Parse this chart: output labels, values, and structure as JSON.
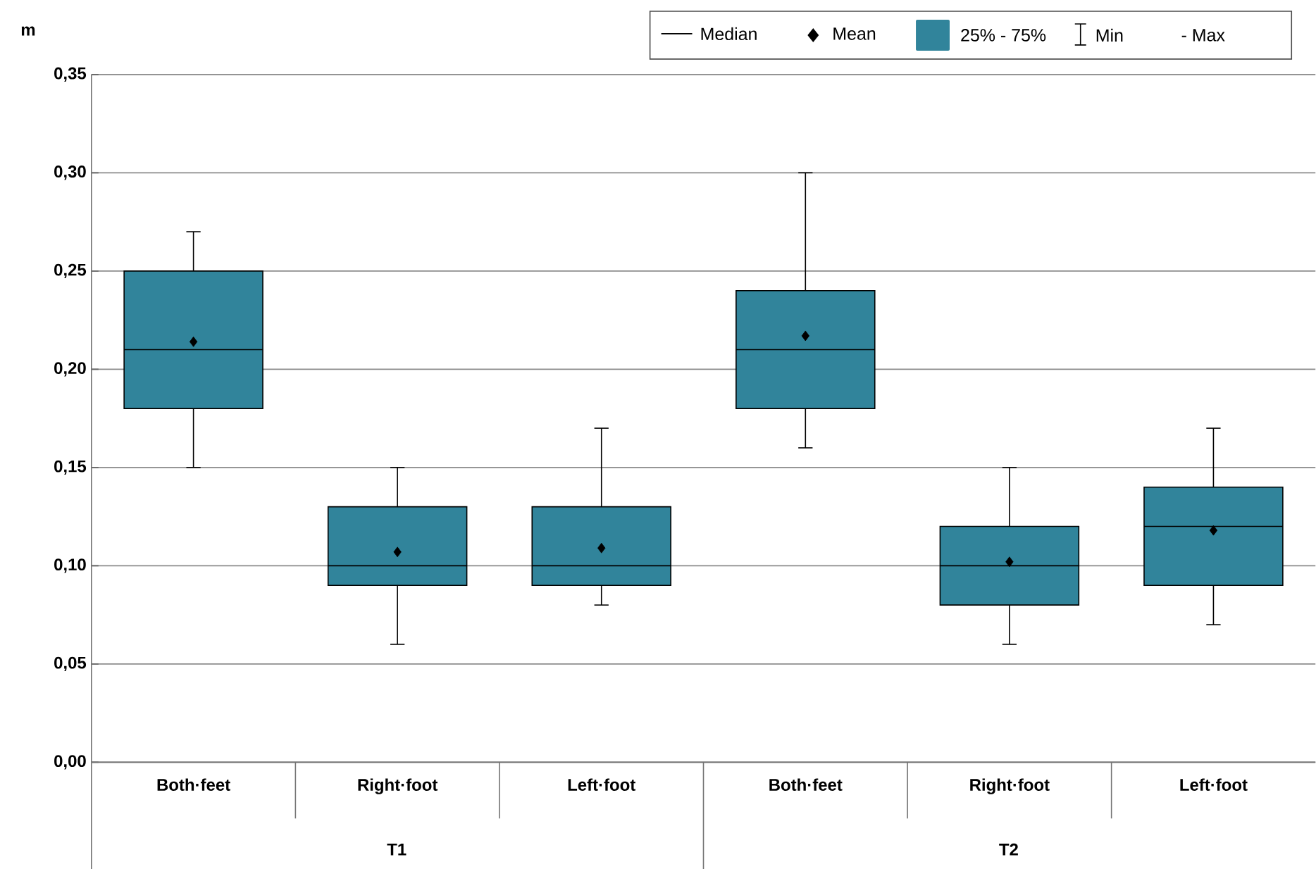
{
  "chart_data": {
    "type": "box",
    "ylabel": "m",
    "categories": [
      "Both·feet",
      "Right·foot",
      "Left·foot",
      "Both·feet",
      "Right·foot",
      "Left·foot"
    ],
    "series": [
      {
        "name": "25% - 75%",
        "color": "#31849b",
        "boxes": [
          {
            "low": 0.15,
            "q1": 0.18,
            "median": 0.21,
            "q3": 0.25,
            "high": 0.27,
            "mean": 0.214
          },
          {
            "low": 0.06,
            "q1": 0.09,
            "median": 0.1,
            "q3": 0.13,
            "high": 0.15,
            "mean": 0.107
          },
          {
            "low": 0.08,
            "q1": 0.09,
            "median": 0.1,
            "q3": 0.13,
            "high": 0.17,
            "mean": 0.109
          },
          {
            "low": 0.16,
            "q1": 0.18,
            "median": 0.21,
            "q3": 0.24,
            "high": 0.3,
            "mean": 0.217
          },
          {
            "low": 0.06,
            "q1": 0.08,
            "median": 0.1,
            "q3": 0.12,
            "high": 0.15,
            "mean": 0.102
          },
          {
            "low": 0.07,
            "q1": 0.09,
            "median": 0.12,
            "q3": 0.14,
            "high": 0.17,
            "mean": 0.118
          }
        ]
      }
    ],
    "ylim": [
      0,
      0.35
    ],
    "yticks": [
      {
        "value": 0,
        "label": "0,00"
      },
      {
        "value": 0.05,
        "label": "0,05"
      },
      {
        "value": 0.1,
        "label": "0,10"
      },
      {
        "value": 0.15,
        "label": "0,15"
      },
      {
        "value": 0.2,
        "label": "0,20"
      },
      {
        "value": 0.25,
        "label": "0,25"
      },
      {
        "value": 0.3,
        "label": "0,30"
      },
      {
        "value": 0.35,
        "label": "0,35"
      }
    ],
    "grid": "y",
    "legend": "top right",
    "marker": "diamond",
    "annotations": [
      "Median",
      "Mean",
      "Min",
      "- Max",
      "T1",
      "T2"
    ]
  }
}
